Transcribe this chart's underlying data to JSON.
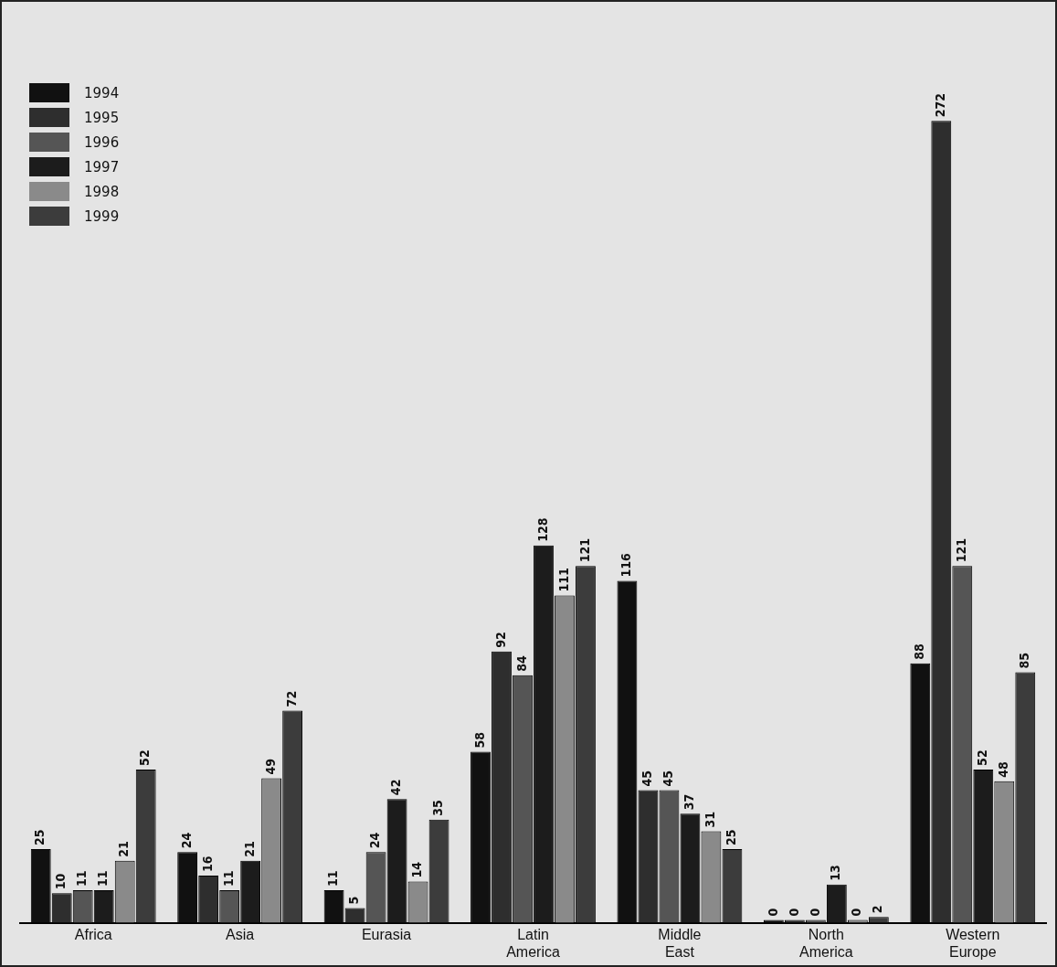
{
  "chart_data": {
    "type": "bar",
    "categories": [
      "Africa",
      "Asia",
      "Eurasia",
      "Latin America",
      "Middle East",
      "North America",
      "Western Europe"
    ],
    "series": [
      {
        "name": "1994",
        "color": "#111111",
        "values": [
          25,
          24,
          11,
          58,
          116,
          0,
          88
        ]
      },
      {
        "name": "1995",
        "color": "#2e2e2e",
        "values": [
          10,
          16,
          5,
          92,
          45,
          0,
          272
        ]
      },
      {
        "name": "1996",
        "color": "#555555",
        "values": [
          11,
          11,
          24,
          84,
          45,
          0,
          121
        ]
      },
      {
        "name": "1997",
        "color": "#1c1c1c",
        "values": [
          11,
          21,
          42,
          128,
          37,
          13,
          52
        ]
      },
      {
        "name": "1998",
        "color": "#8a8a8a",
        "values": [
          21,
          49,
          14,
          111,
          31,
          0,
          48
        ]
      },
      {
        "name": "1999",
        "color": "#3c3c3c",
        "values": [
          52,
          72,
          35,
          121,
          25,
          2,
          85
        ]
      }
    ],
    "data_labels": true,
    "legend": "top left",
    "tick_labels": "x",
    "grid": false
  }
}
